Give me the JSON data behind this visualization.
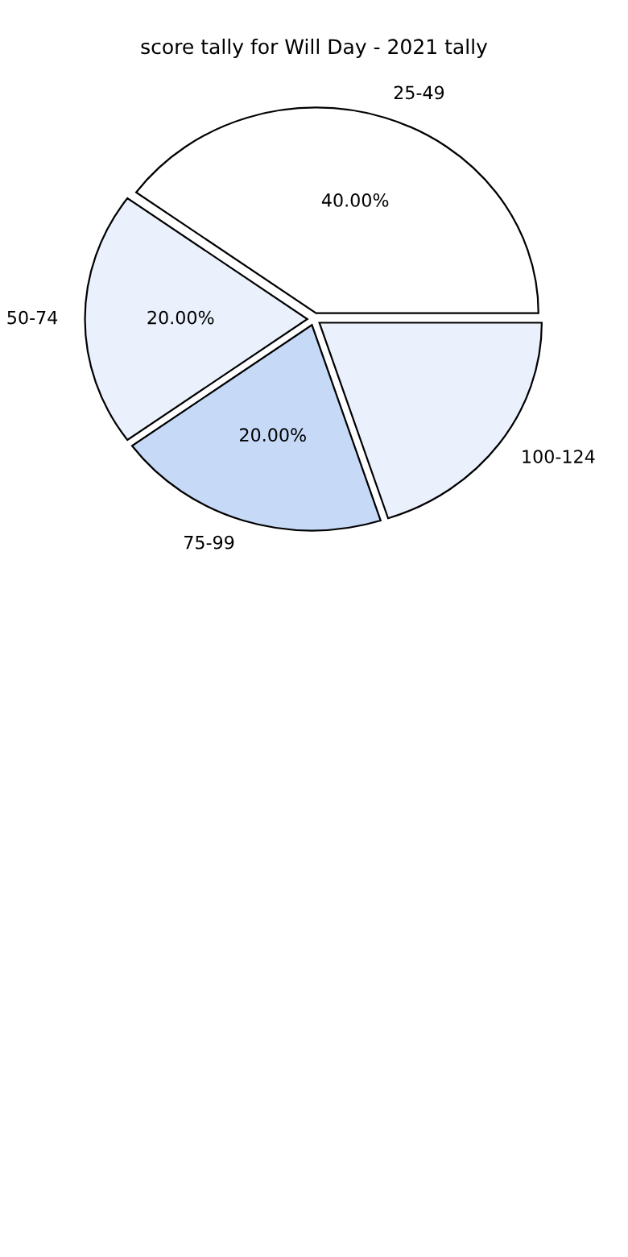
{
  "chart_data": {
    "type": "pie",
    "title": "score tally for Will Day - 2021 tally",
    "categories": [
      "25-49",
      "50-74",
      "75-99",
      "100-124"
    ],
    "values": [
      40,
      20,
      20,
      20
    ],
    "colors": [
      "#ffffff",
      "#eaf1fd",
      "#c6d9f7",
      "#eaf1fd"
    ],
    "value_labels": [
      "40.00%",
      "20.00%",
      "20.00%",
      null
    ]
  }
}
